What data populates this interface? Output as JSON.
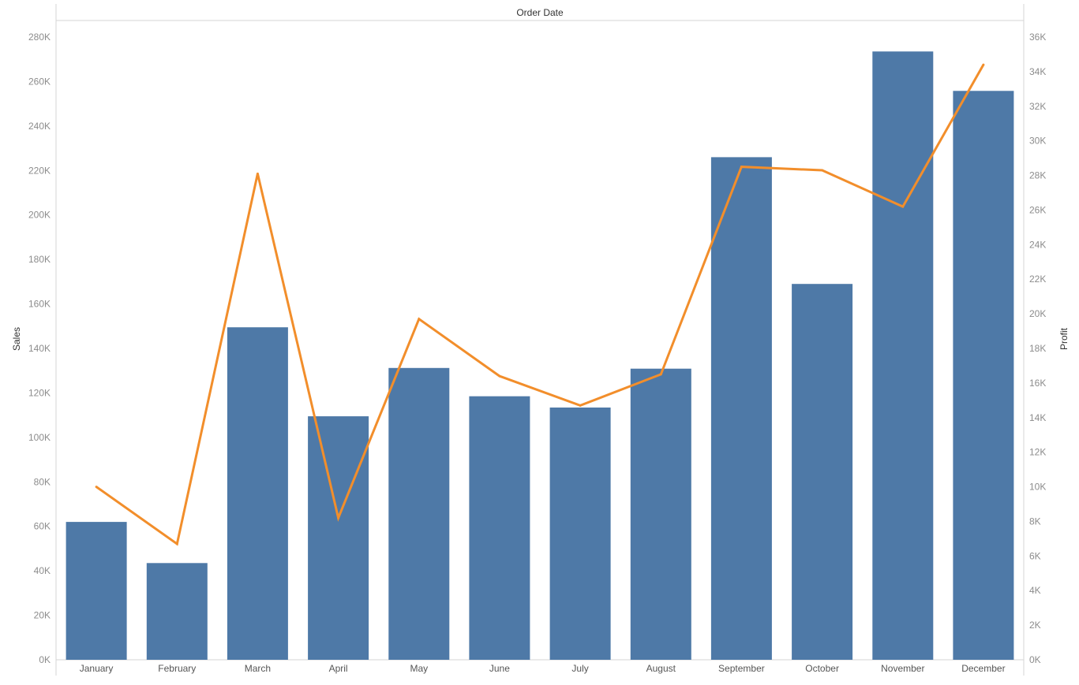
{
  "chart_data": {
    "type": "bar",
    "header": "Order Date",
    "categories": [
      "January",
      "February",
      "March",
      "April",
      "May",
      "June",
      "July",
      "August",
      "September",
      "October",
      "November",
      "December"
    ],
    "series": [
      {
        "name": "Sales",
        "type": "bar",
        "axis": "left",
        "color": "#4e79a7",
        "values": [
          62000,
          43500,
          149500,
          109500,
          131200,
          118500,
          113400,
          130900,
          226000,
          169000,
          273500,
          255800
        ]
      },
      {
        "name": "Profit",
        "type": "line",
        "axis": "right",
        "color": "#f28e2b",
        "values": [
          10000,
          6700,
          28100,
          8200,
          19700,
          16400,
          14700,
          16500,
          28500,
          28300,
          26200,
          34400
        ]
      }
    ],
    "ylabel": "Sales",
    "y2label": "Profit",
    "ylim": [
      0,
      280000
    ],
    "y2lim": [
      0,
      36000
    ],
    "yticks": [
      {
        "value": 0,
        "label": "0K"
      },
      {
        "value": 20000,
        "label": "20K"
      },
      {
        "value": 40000,
        "label": "40K"
      },
      {
        "value": 60000,
        "label": "60K"
      },
      {
        "value": 80000,
        "label": "80K"
      },
      {
        "value": 100000,
        "label": "100K"
      },
      {
        "value": 120000,
        "label": "120K"
      },
      {
        "value": 140000,
        "label": "140K"
      },
      {
        "value": 160000,
        "label": "160K"
      },
      {
        "value": 180000,
        "label": "180K"
      },
      {
        "value": 200000,
        "label": "200K"
      },
      {
        "value": 220000,
        "label": "220K"
      },
      {
        "value": 240000,
        "label": "240K"
      },
      {
        "value": 260000,
        "label": "260K"
      },
      {
        "value": 280000,
        "label": "280K"
      }
    ],
    "y2ticks": [
      {
        "value": 0,
        "label": "0K"
      },
      {
        "value": 2000,
        "label": "2K"
      },
      {
        "value": 4000,
        "label": "4K"
      },
      {
        "value": 6000,
        "label": "6K"
      },
      {
        "value": 8000,
        "label": "8K"
      },
      {
        "value": 10000,
        "label": "10K"
      },
      {
        "value": 12000,
        "label": "12K"
      },
      {
        "value": 14000,
        "label": "14K"
      },
      {
        "value": 16000,
        "label": "16K"
      },
      {
        "value": 18000,
        "label": "18K"
      },
      {
        "value": 20000,
        "label": "20K"
      },
      {
        "value": 22000,
        "label": "22K"
      },
      {
        "value": 24000,
        "label": "24K"
      },
      {
        "value": 26000,
        "label": "26K"
      },
      {
        "value": 28000,
        "label": "28K"
      },
      {
        "value": 30000,
        "label": "30K"
      },
      {
        "value": 32000,
        "label": "32K"
      },
      {
        "value": 34000,
        "label": "34K"
      },
      {
        "value": 36000,
        "label": "36K"
      }
    ],
    "grid": false,
    "legend": "none"
  }
}
